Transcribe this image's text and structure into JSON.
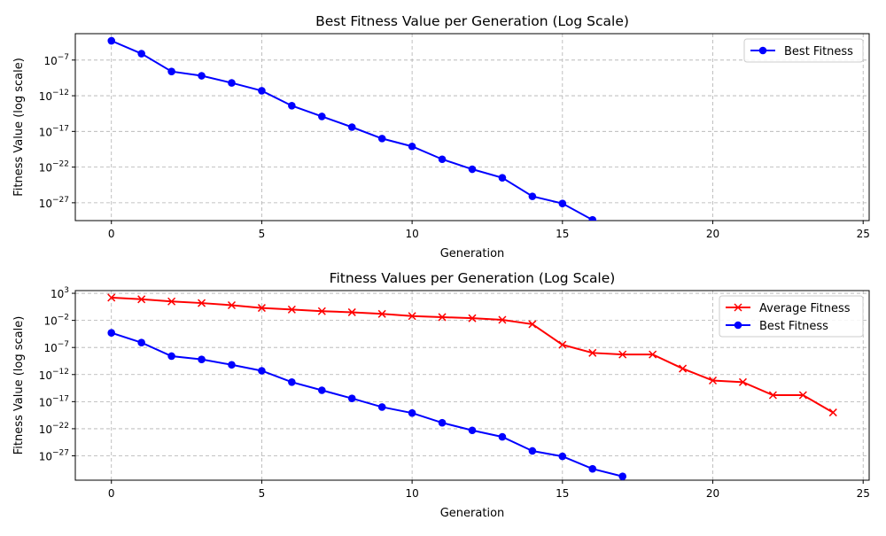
{
  "chart_data": [
    {
      "type": "line",
      "title": "Best Fitness Value per Generation (Log Scale)",
      "xlabel": "Generation",
      "ylabel": "Fitness Value (log scale)",
      "yscale": "log",
      "xlim": [
        -1.2,
        25.2
      ],
      "ylim_log10": [
        -29.5,
        -3.3
      ],
      "xticks": [
        0,
        5,
        10,
        15,
        20,
        25
      ],
      "yticks_exp": [
        -7,
        -12,
        -17,
        -22,
        -27
      ],
      "grid": true,
      "legend_position": "top-right",
      "series": [
        {
          "name": "Best Fitness",
          "color": "#0000ff",
          "marker": "circle",
          "x": [
            0,
            1,
            2,
            3,
            4,
            5,
            6,
            7,
            8,
            9,
            10,
            11,
            12,
            13,
            14,
            15,
            16,
            17
          ],
          "y_log10": [
            -4.3,
            -6.1,
            -8.6,
            -9.2,
            -10.2,
            -11.3,
            -13.4,
            -14.9,
            -16.4,
            -18.0,
            -19.1,
            -20.9,
            -22.3,
            -23.5,
            -26.1,
            -27.1,
            -29.4,
            -30.8
          ]
        }
      ]
    },
    {
      "type": "line",
      "title": "Fitness Values per Generation (Log Scale)",
      "xlabel": "Generation",
      "ylabel": "Fitness Value (log scale)",
      "yscale": "log",
      "xlim": [
        -1.2,
        25.2
      ],
      "ylim_log10": [
        -31.5,
        3.5
      ],
      "xticks": [
        0,
        5,
        10,
        15,
        20,
        25
      ],
      "yticks_exp": [
        3,
        -2,
        -7,
        -12,
        -17,
        -22,
        -27
      ],
      "grid": true,
      "legend_position": "top-right",
      "series": [
        {
          "name": "Average Fitness",
          "color": "#ff0000",
          "marker": "x",
          "x": [
            0,
            1,
            2,
            3,
            4,
            5,
            6,
            7,
            8,
            9,
            10,
            11,
            12,
            13,
            14,
            15,
            16,
            17,
            18,
            19,
            20,
            21,
            22,
            23,
            24
          ],
          "y_log10": [
            2.2,
            1.9,
            1.5,
            1.2,
            0.8,
            0.3,
            0.0,
            -0.3,
            -0.5,
            -0.8,
            -1.2,
            -1.4,
            -1.6,
            -1.9,
            -2.7,
            -6.5,
            -8.0,
            -8.3,
            -8.3,
            -10.9,
            -13.1,
            -13.4,
            -15.8,
            -15.8,
            -19.0
          ]
        },
        {
          "name": "Best Fitness",
          "color": "#0000ff",
          "marker": "circle",
          "x": [
            0,
            1,
            2,
            3,
            4,
            5,
            6,
            7,
            8,
            9,
            10,
            11,
            12,
            13,
            14,
            15,
            16,
            17
          ],
          "y_log10": [
            -4.3,
            -6.1,
            -8.6,
            -9.2,
            -10.2,
            -11.3,
            -13.4,
            -14.9,
            -16.4,
            -18.0,
            -19.1,
            -20.9,
            -22.3,
            -23.5,
            -26.1,
            -27.1,
            -29.4,
            -30.8
          ]
        }
      ]
    }
  ]
}
